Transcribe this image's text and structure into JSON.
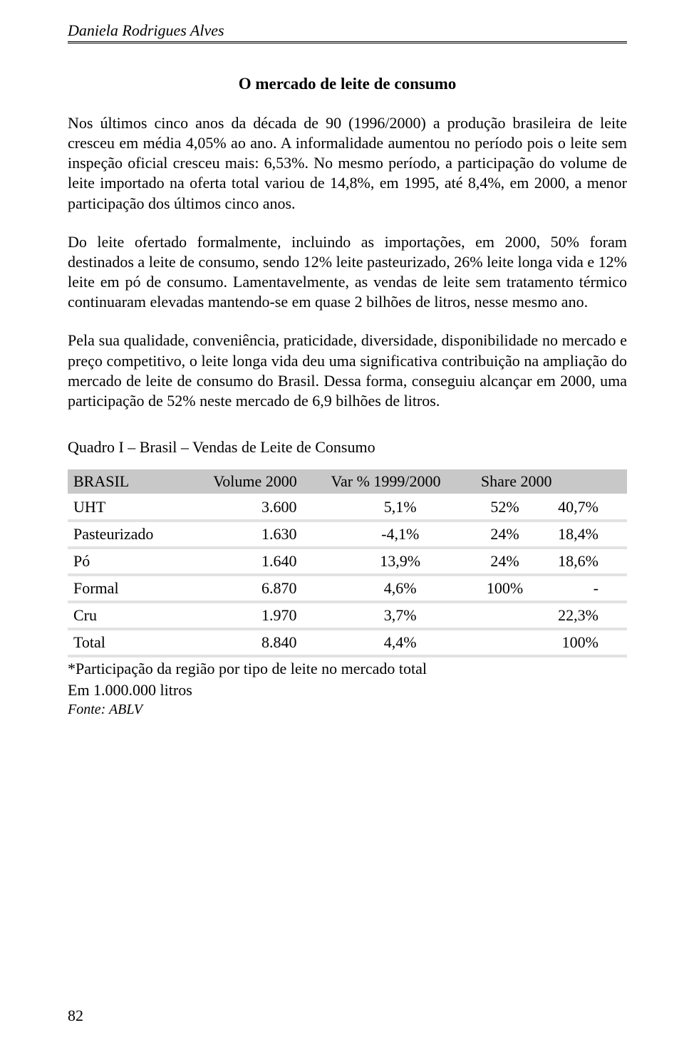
{
  "header": {
    "running_head": "Daniela Rodrigues Alves"
  },
  "title": "O mercado de leite de consumo",
  "paragraphs": {
    "p1": "Nos últimos cinco anos da década de 90 (1996/2000) a produção brasileira de leite cresceu em média 4,05% ao ano. A informalidade aumentou no período pois o leite sem inspeção oficial cresceu mais: 6,53%. No mesmo período, a participação do volume de leite importado na oferta total variou de 14,8%, em 1995, até 8,4%, em 2000, a menor participação dos últimos cinco anos.",
    "p2": "Do leite ofertado formalmente, incluindo as importações, em 2000, 50% foram destinados a leite de consumo, sendo 12% leite pasteurizado, 26% leite longa vida e 12% leite em pó de consumo. Lamentavelmente, as vendas de leite sem tratamento térmico continuaram elevadas mantendo-se em quase 2 bilhões de litros, nesse mesmo ano.",
    "p3": "Pela sua qualidade, conveniência, praticidade, diversidade, disponibilidade no mercado e preço competitivo, o leite longa vida deu uma significativa contribuição na ampliação do mercado de leite de consumo do Brasil. Dessa forma, conseguiu alcançar em 2000, uma participação de 52% neste mercado de 6,9 bilhões de litros."
  },
  "table": {
    "title": "Quadro I – Brasil – Vendas de Leite de Consumo",
    "columns": [
      "BRASIL",
      "Volume 2000",
      "Var % 1999/2000",
      "Share 2000",
      ""
    ],
    "rows": [
      [
        "UHT",
        "3.600",
        "5,1%",
        "52%",
        "40,7%"
      ],
      [
        "Pasteurizado",
        "1.630",
        "-4,1%",
        "24%",
        "18,4%"
      ],
      [
        "Pó",
        "1.640",
        "13,9%",
        "24%",
        "18,6%"
      ],
      [
        "Formal",
        "6.870",
        "4,6%",
        "100%",
        "-"
      ],
      [
        "Cru",
        "1.970",
        "3,7%",
        "",
        "22,3%"
      ],
      [
        "Total",
        "8.840",
        "4,4%",
        "",
        "100%"
      ]
    ],
    "footnote1": "*Participação da região por tipo de leite no mercado total",
    "footnote2": "Em 1.000.000 litros",
    "source": "Fonte: ABLV",
    "header_bg": "#c8c8c8",
    "row_divider": "#e2e2e2"
  },
  "page_number": "82"
}
